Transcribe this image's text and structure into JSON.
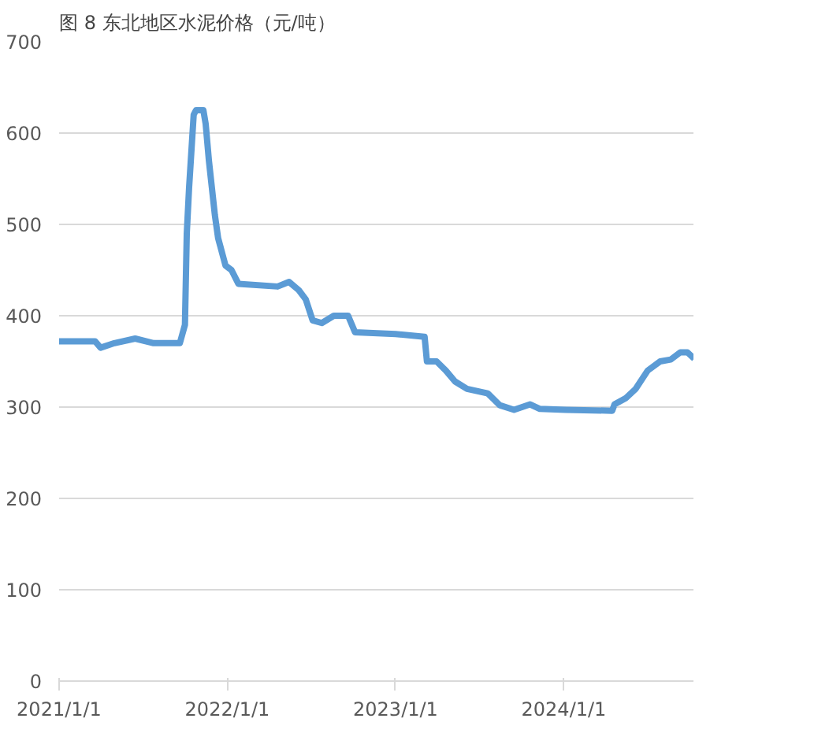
{
  "chart_data": {
    "type": "line",
    "title": "图 8 东北地区水泥价格（元/吨）",
    "x": [
      "2021-01-01",
      "2021-03-20",
      "2021-04-01",
      "2021-05-01",
      "2021-06-15",
      "2021-07-25",
      "2021-09-20",
      "2021-10-01",
      "2021-10-05",
      "2021-10-10",
      "2021-10-20",
      "2021-10-25",
      "2021-11-10",
      "2021-11-15",
      "2021-11-22",
      "2021-12-05",
      "2021-12-12",
      "2021-12-28",
      "2022-01-10",
      "2022-01-25",
      "2022-04-20",
      "2022-05-15",
      "2022-06-05",
      "2022-06-20",
      "2022-07-05",
      "2022-07-25",
      "2022-08-20",
      "2022-09-20",
      "2022-10-05",
      "2023-01-01",
      "2023-03-05",
      "2023-03-10",
      "2023-03-31",
      "2023-04-20",
      "2023-05-10",
      "2023-06-05",
      "2023-07-20",
      "2023-08-15",
      "2023-09-15",
      "2023-10-20",
      "2023-11-10",
      "2024-01-05",
      "2024-04-15",
      "2024-04-20",
      "2024-05-15",
      "2024-06-05",
      "2024-07-01",
      "2024-07-28",
      "2024-08-20",
      "2024-09-10",
      "2024-09-25",
      "2024-10-10"
    ],
    "series": [
      {
        "color": "#5b9bd5",
        "values": [
          372,
          372,
          365,
          370,
          375,
          370,
          370,
          390,
          490,
          540,
          620,
          625,
          625,
          610,
          570,
          510,
          485,
          455,
          450,
          435,
          432,
          437,
          428,
          418,
          395,
          392,
          400,
          400,
          382,
          380,
          377,
          350,
          350,
          340,
          328,
          320,
          315,
          302,
          297,
          303,
          298,
          297,
          296,
          303,
          310,
          320,
          340,
          350,
          352,
          360,
          360,
          353
        ]
      }
    ],
    "xlim": [
      "2021-01-01",
      "2024-10-10"
    ],
    "xticks": [
      {
        "value": "2021-01-01",
        "label": "2021/1/1"
      },
      {
        "value": "2022-01-01",
        "label": "2022/1/1"
      },
      {
        "value": "2023-01-01",
        "label": "2023/1/1"
      },
      {
        "value": "2024-01-01",
        "label": "2024/1/1"
      }
    ],
    "ylim": [
      0,
      700
    ],
    "yticks": [
      0,
      100,
      200,
      300,
      400,
      500,
      600,
      700
    ],
    "grid": "y",
    "marker": "none",
    "line_style": "solid"
  }
}
